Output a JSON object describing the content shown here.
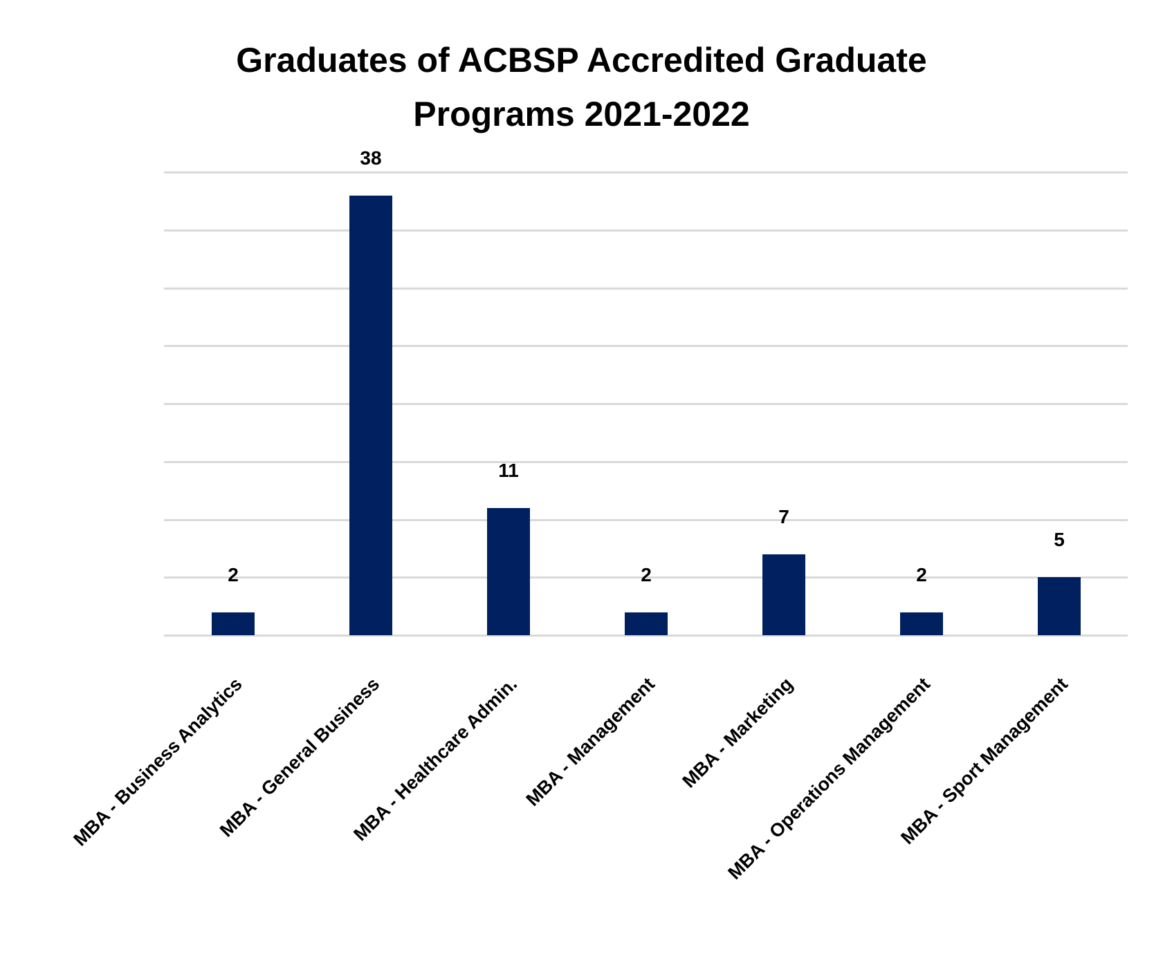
{
  "chart": {
    "title_line1": "Graduates of ACBSP Accredited Graduate",
    "title_line2": "Programs 2021-2022",
    "bar_color": "#002060",
    "grid_color": "#d9d9d9"
  },
  "chart_data": {
    "type": "bar",
    "title": "Graduates of ACBSP Accredited Graduate Programs 2021-2022",
    "categories": [
      "MBA - Business Analytics",
      "MBA - General Business",
      "MBA - Healthcare Admin.",
      "MBA - Management",
      "MBA - Marketing",
      "MBA - Operations Management",
      "MBA - Sport Management"
    ],
    "values": [
      2,
      38,
      11,
      2,
      7,
      2,
      5
    ],
    "data_labels": [
      "2",
      "38",
      "11",
      "2",
      "7",
      "2",
      "5"
    ],
    "xlabel": "",
    "ylabel": "",
    "ylim": [
      0,
      40
    ],
    "y_gridlines": [
      0,
      5,
      10,
      15,
      20,
      25,
      30,
      35,
      40
    ],
    "y_tick_labels_visible": false,
    "grid": true,
    "legend": "none"
  }
}
